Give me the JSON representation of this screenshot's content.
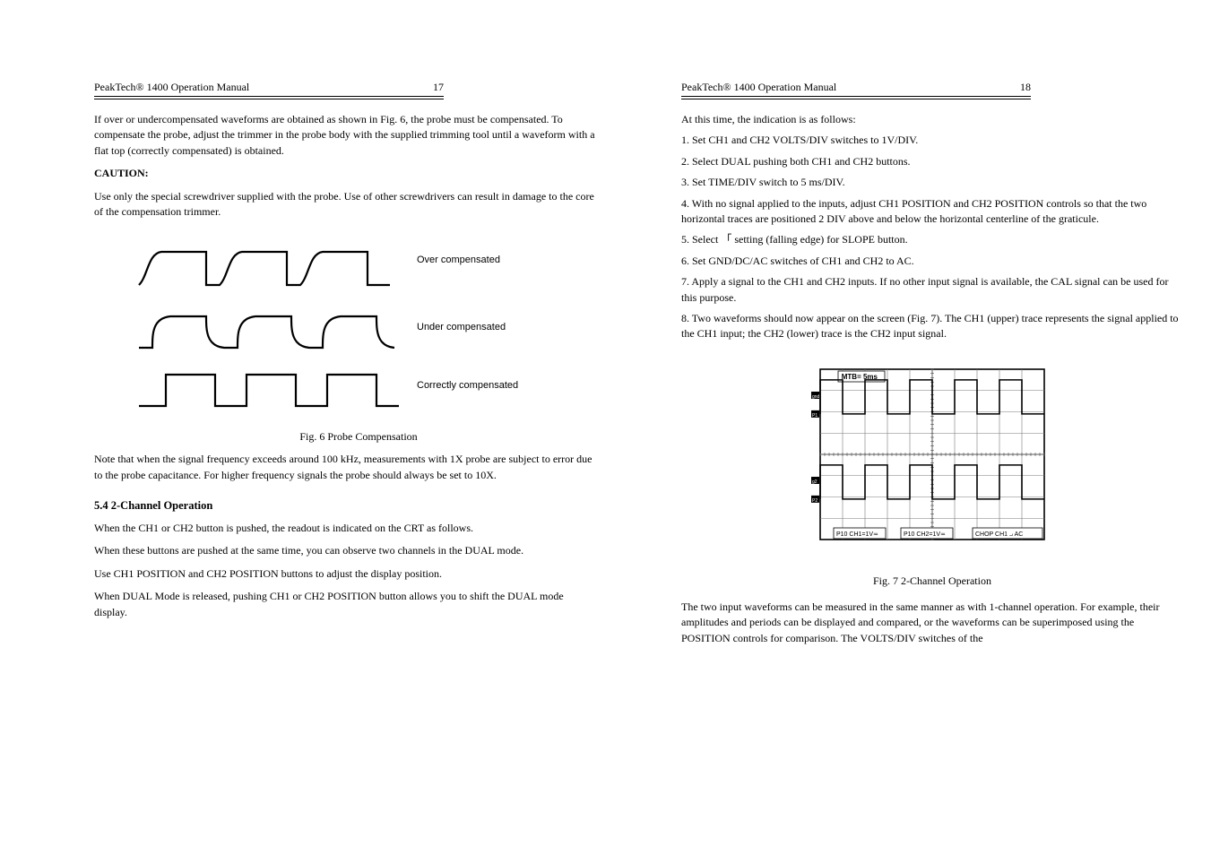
{
  "left": {
    "header_title": "PeakTech® 1400 Operation Manual",
    "page_number": "17",
    "intro": "If over or undercompensated waveforms are obtained as shown in Fig. 6, the probe must be compensated. To compensate the probe, adjust the trimmer in the probe body with the supplied trimming tool until a waveform with a flat top (correctly compensated) is obtained.",
    "caution_title": "CAUTION:",
    "caution_body": "Use only the special screwdriver supplied with the probe. Use of other screwdrivers can result in damage to the core of the compensation trimmer.",
    "wave_labels": {
      "over": "Over compensated",
      "under": "Under compensated",
      "correct": "Correctly compensated"
    },
    "fig_caption": "Fig. 6 Probe Compensation",
    "para4": "Note that when the signal frequency exceeds around 100 kHz, measurements with 1X probe are subject to error due to the probe capacitance. For higher frequency signals the probe should always be set to 10X.",
    "sec2_title": "5.4 2-Channel Operation",
    "sec2_p1": "When the CH1 or CH2 button is pushed, the readout is indicated on the CRT as follows.",
    "sec2_p2": "When these buttons are pushed at the same time, you can observe two channels in the DUAL mode.",
    "sec2_p3": "Use CH1 POSITION and CH2 POSITION buttons to adjust the display position.",
    "sec2_p4": "When DUAL Mode is released, pushing CH1 or CH2 POSITION button allows you to shift the DUAL mode display.",
    "wave_styling": {
      "stroke": "#000000",
      "stroke_width": 2.2,
      "label_fontsize": 11,
      "label_font": "Arial"
    }
  },
  "right": {
    "header_title": "PeakTech® 1400 Operation Manual",
    "page_number": "18",
    "steps_intro": "At this time, the indication is as follows:",
    "steps": [
      "1. Set CH1 and CH2 VOLTS/DIV switches to 1V/DIV.",
      "2. Select DUAL pushing both CH1 and CH2 buttons.",
      "3. Set TIME/DIV switch to 5 ms/DIV.",
      "4. With no signal applied to the inputs, adjust CH1 POSITION and CH2 POSITION controls so that the two horizontal traces are positioned 2 DIV above and below the horizontal centerline of the graticule.",
      "5. Select 「 setting (falling edge) for SLOPE button.",
      "6. Set GND/DC/AC switches of CH1 and CH2 to AC.",
      "7. Apply a signal to the CH1 and CH2 inputs. If no other input signal is available, the CAL signal can be used for this purpose.",
      "8. Two waveforms should now appear on the screen (Fig. 7). The CH1 (upper) trace represents the signal applied to the CH1 input; the CH2 (lower) trace is the CH2 input signal."
    ],
    "fig_caption": "Fig. 7 2-Channel Operation",
    "footnote": "The two input waveforms can be measured in the same manner as with 1-channel operation. For example, their amplitudes and periods can be displayed and compared, or the waveforms can be superimposed using the POSITION controls for comparison. The VOLTS/DIV switches of the",
    "scope": {
      "type": "oscilloscope-screen",
      "outer_border_color": "#000000",
      "grid_color": "#7a7a7a",
      "grid_cols": 10,
      "grid_rows": 8,
      "center_tick_style": "fine",
      "mtb_label": "MTB= 5ms",
      "bottom_labels": [
        "P10 CH1=1V≂",
        "P10 CH2=1V≂",
        "CHOP  CH1 ⨼ AC"
      ],
      "ch1_trace": {
        "baseline_row": 2.1,
        "amplitude_rows": 1.6,
        "periods": 5,
        "color": "#000000",
        "width": 1.6
      },
      "ch2_trace": {
        "baseline_row": 6.1,
        "amplitude_rows": 1.6,
        "periods": 5,
        "color": "#000000",
        "width": 1.6
      },
      "gnd_markers": [
        "gnd",
        "P1",
        "g2",
        "P2"
      ]
    }
  }
}
